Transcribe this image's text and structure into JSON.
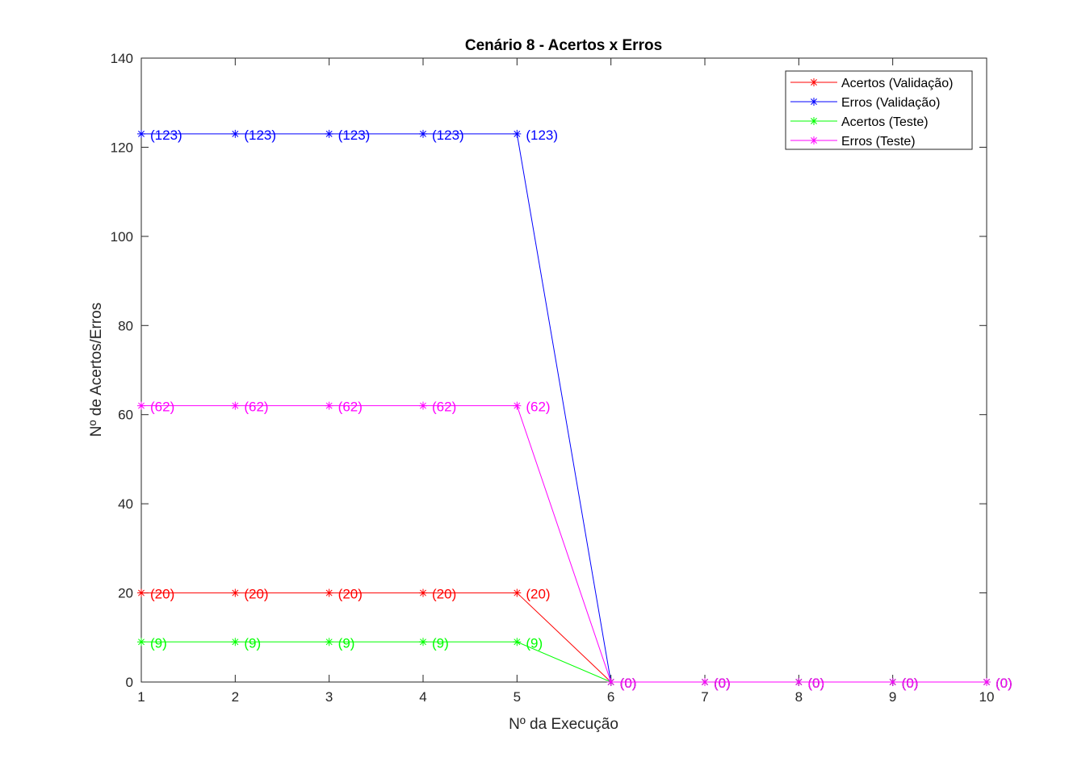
{
  "chart_data": {
    "type": "line",
    "title": "Cenário 8 - Acertos x Erros",
    "xlabel": "Nº da Execução",
    "ylabel": "Nº de Acertos/Erros",
    "x": [
      1,
      2,
      3,
      4,
      5,
      6,
      7,
      8,
      9,
      10
    ],
    "xlim": [
      1,
      10
    ],
    "ylim": [
      0,
      140
    ],
    "xticks": [
      1,
      2,
      3,
      4,
      5,
      6,
      7,
      8,
      9,
      10
    ],
    "yticks": [
      0,
      20,
      40,
      60,
      80,
      100,
      120,
      140
    ],
    "grid": false,
    "legend_position": "top-right",
    "marker": "asterisk",
    "series": [
      {
        "name": "Acertos (Validação)",
        "color": "#ff0000",
        "values": [
          20,
          20,
          20,
          20,
          20,
          0,
          0,
          0,
          0,
          0
        ],
        "labels": [
          "(20)",
          "(20)",
          "(20)",
          "(20)",
          "(20)",
          "(0)",
          "(0)",
          "(0)",
          "(0)",
          "(0)"
        ]
      },
      {
        "name": "Erros (Validação)",
        "color": "#0000ff",
        "values": [
          123,
          123,
          123,
          123,
          123,
          0,
          0,
          0,
          0,
          0
        ],
        "labels": [
          "(123)",
          "(123)",
          "(123)",
          "(123)",
          "(123)",
          "(0)",
          "(0)",
          "(0)",
          "(0)",
          "(0)"
        ]
      },
      {
        "name": "Acertos (Teste)",
        "color": "#00ff00",
        "values": [
          9,
          9,
          9,
          9,
          9,
          0,
          0,
          0,
          0,
          0
        ],
        "labels": [
          "(9)",
          "(9)",
          "(9)",
          "(9)",
          "(9)",
          "(0)",
          "(0)",
          "(0)",
          "(0)",
          "(0)"
        ]
      },
      {
        "name": "Erros (Teste)",
        "color": "#ff00ff",
        "values": [
          62,
          62,
          62,
          62,
          62,
          0,
          0,
          0,
          0,
          0
        ],
        "labels": [
          "(62)",
          "(62)",
          "(62)",
          "(62)",
          "(62)",
          "(0)",
          "(0)",
          "(0)",
          "(0)",
          "(0)"
        ]
      }
    ]
  }
}
